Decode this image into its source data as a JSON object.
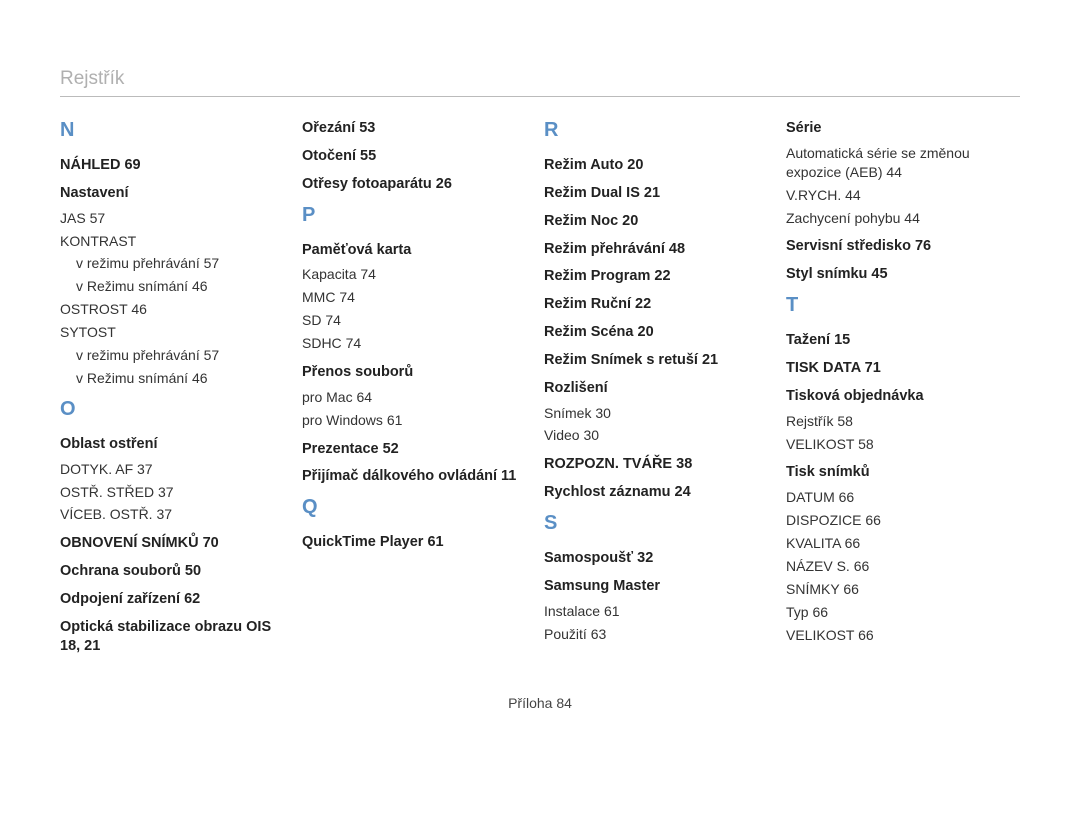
{
  "header": {
    "title": "Rejstřík"
  },
  "footer": {
    "label": "Příloha",
    "page": "84"
  },
  "col1": {
    "letter_n": "N",
    "nahled": {
      "label": "NÁHLED",
      "page": "69"
    },
    "nastaveni": {
      "label": "Nastavení"
    },
    "jas": {
      "label": "JAS",
      "page": "57"
    },
    "kontrast": {
      "label": "KONTRAST"
    },
    "kontrast_sub1": {
      "label": "v režimu přehrávání",
      "page": "57"
    },
    "kontrast_sub2": {
      "label": "v Režimu snímání",
      "page": "46"
    },
    "ostrost": {
      "label": "OSTROST",
      "page": "46"
    },
    "sytost": {
      "label": "SYTOST"
    },
    "sytost_sub1": {
      "label": "v režimu přehrávání",
      "page": "57"
    },
    "sytost_sub2": {
      "label": "v Režimu snímání",
      "page": "46"
    },
    "letter_o": "O",
    "oblast": {
      "label": "Oblast ostření"
    },
    "dotyk": {
      "label": "DOTYK. AF",
      "page": "37"
    },
    "ostr_stred": {
      "label": "OSTŘ. STŘED",
      "page": "37"
    },
    "viceb": {
      "label": "VÍCEB. OSTŘ.",
      "page": "37"
    },
    "obnoveni": {
      "label": "OBNOVENÍ SNÍMKŮ",
      "page": "70"
    },
    "ochrana": {
      "label": "Ochrana souborů",
      "page": "50"
    },
    "odpojeni": {
      "label": "Odpojení zařízení",
      "page": "62"
    },
    "opticka": {
      "label": "Optická stabilizace obrazu OIS",
      "pages": "18, 21"
    }
  },
  "col2": {
    "orezani": {
      "label": "Ořezání",
      "page": "53"
    },
    "otoceni": {
      "label": "Otočení",
      "page": "55"
    },
    "otresy": {
      "label": "Otřesy fotoaparátu",
      "page": "26"
    },
    "letter_p": "P",
    "pamet": {
      "label": "Paměťová karta"
    },
    "kapacita": {
      "label": "Kapacita",
      "page": "74"
    },
    "mmc": {
      "label": "MMC",
      "page": "74"
    },
    "sd": {
      "label": "SD",
      "page": "74"
    },
    "sdhc": {
      "label": "SDHC",
      "page": "74"
    },
    "prenos": {
      "label": "Přenos souborů"
    },
    "promac": {
      "label": "pro Mac",
      "page": "64"
    },
    "prowin": {
      "label": "pro Windows",
      "page": "61"
    },
    "prezentace": {
      "label": "Prezentace",
      "page": "52"
    },
    "prijimac": {
      "label": "Přijímač dálkového ovládání",
      "page": "11"
    },
    "letter_q": "Q",
    "quicktime": {
      "label": "QuickTime Player",
      "page": "61"
    }
  },
  "col3": {
    "letter_r": "R",
    "rezim_auto": {
      "label": "Režim Auto",
      "page": "20"
    },
    "rezim_dual": {
      "label": "Režim Dual IS",
      "page": "21"
    },
    "rezim_noc": {
      "label": "Režim Noc",
      "page": "20"
    },
    "rezim_preh": {
      "label": "Režim přehrávání",
      "page": "48"
    },
    "rezim_prog": {
      "label": "Režim Program",
      "page": "22"
    },
    "rezim_rucni": {
      "label": "Režim Ruční",
      "page": "22"
    },
    "rezim_scena": {
      "label": "Režim Scéna",
      "page": "20"
    },
    "rezim_snimek": {
      "label": "Režim Snímek s retuší",
      "page": "21"
    },
    "rozliseni": {
      "label": "Rozlišení"
    },
    "snimek": {
      "label": "Snímek",
      "page": "30"
    },
    "video": {
      "label": "Video",
      "page": "30"
    },
    "rozpozn": {
      "label": "ROZPOZN. TVÁŘE",
      "page": "38"
    },
    "rychlost": {
      "label": "Rychlost záznamu",
      "page": "24"
    },
    "letter_s": "S",
    "samospoust": {
      "label": "Samospoušť",
      "page": "32"
    },
    "samsung": {
      "label": "Samsung Master"
    },
    "instalace": {
      "label": "Instalace",
      "page": "61"
    },
    "pouziti": {
      "label": "Použití",
      "page": "63"
    }
  },
  "col4": {
    "serie": {
      "label": "Série"
    },
    "auto_serie": {
      "label": "Automatická série se změnou expozice (AEB)",
      "page": "44"
    },
    "vrych": {
      "label": "V.RYCH.",
      "page": "44"
    },
    "zachyceni": {
      "label": "Zachycení pohybu",
      "page": "44"
    },
    "servisni": {
      "label": "Servisní středisko",
      "page": "76"
    },
    "styl": {
      "label": "Styl snímku",
      "page": "45"
    },
    "letter_t": "T",
    "tazeni": {
      "label": "Tažení",
      "page": "15"
    },
    "tiskdata": {
      "label": "TISK DATA",
      "page": "71"
    },
    "tiskova": {
      "label": "Tisková objednávka"
    },
    "rejstrik": {
      "label": "Rejstřík",
      "page": "58"
    },
    "velikost1": {
      "label": "VELIKOST",
      "page": "58"
    },
    "tisk_snimku": {
      "label": "Tisk snímků"
    },
    "datum": {
      "label": "DATUM",
      "page": "66"
    },
    "dispozice": {
      "label": "DISPOZICE",
      "page": "66"
    },
    "kvalita": {
      "label": "KVALITA",
      "page": "66"
    },
    "nazevs": {
      "label": "NÁZEV S.",
      "page": "66"
    },
    "snimky": {
      "label": "SNÍMKY",
      "page": "66"
    },
    "typ": {
      "label": "Typ",
      "page": "66"
    },
    "velikost2": {
      "label": "VELIKOST",
      "page": "66"
    }
  }
}
